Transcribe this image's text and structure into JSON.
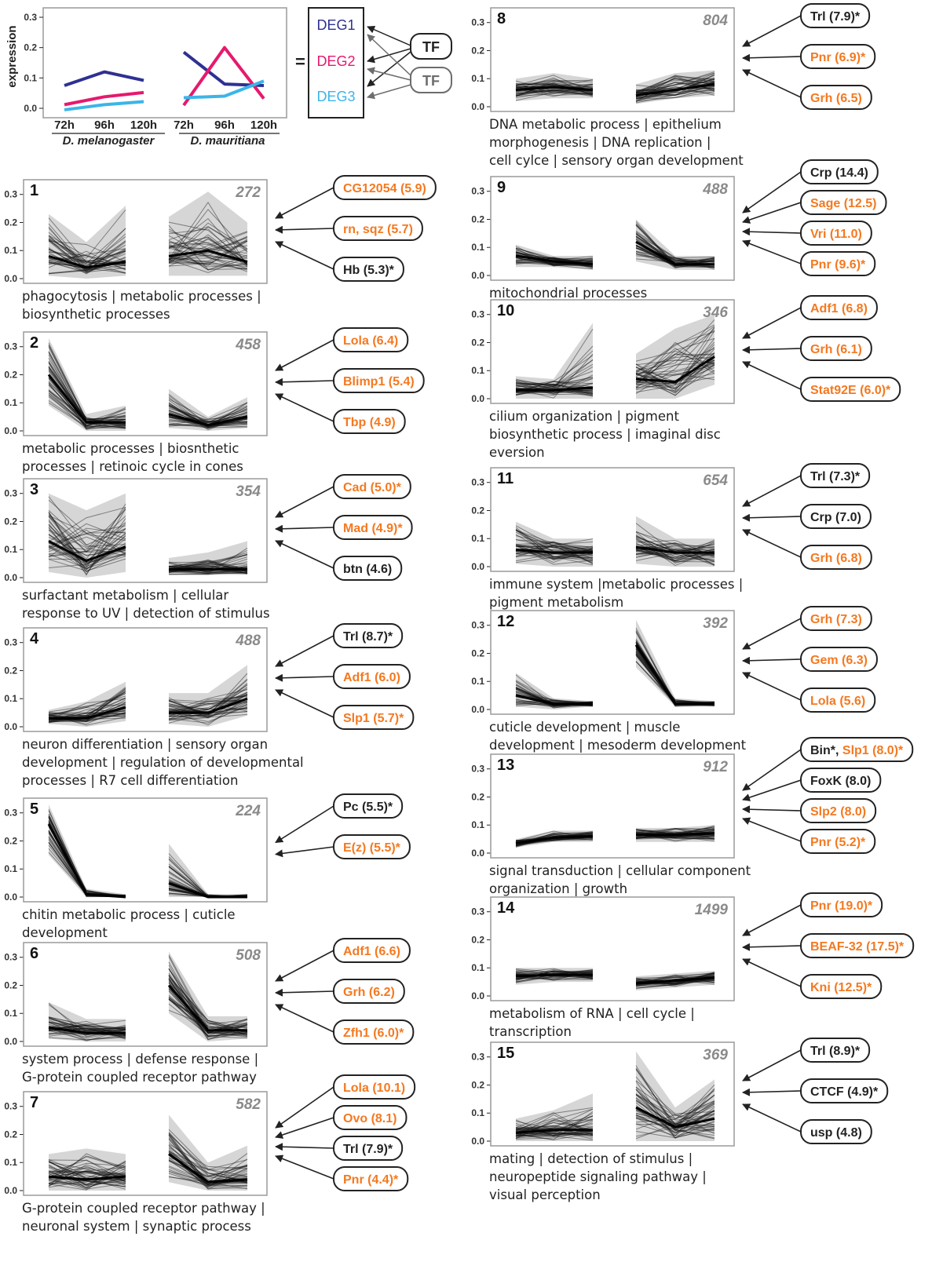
{
  "colors": {
    "orange": "#f47920",
    "black": "#222222",
    "deg1": "#2e3192",
    "deg2": "#e6196e",
    "deg3": "#3bb5e8",
    "tf_gray": "#6d6d6d",
    "panel_border": "#9a9a9a",
    "count_gray": "#8a8a8a"
  },
  "yticks": [
    "0.0",
    "0.1",
    "0.2",
    "0.3"
  ],
  "legend": {
    "ylabel": "expression",
    "xticks": [
      "72h",
      "96h",
      "120h",
      "72h",
      "96h",
      "120h"
    ],
    "species": [
      "D. melanogaster",
      "D. mauritiana"
    ],
    "equals": "=",
    "deg_labels": [
      "DEG1",
      "DEG2",
      "DEG3"
    ],
    "tf_labels": [
      "TF",
      "TF"
    ]
  },
  "chart_data": [
    {
      "type": "line",
      "panel": "legend",
      "x": [
        "72h",
        "96h",
        "120h"
      ],
      "groups": [
        "D. melanogaster",
        "D. mauritiana"
      ],
      "ylabel": "expression",
      "ylim": [
        0,
        0.3
      ],
      "series": [
        {
          "name": "DEG1",
          "color": "#2e3192",
          "values": [
            [
              0.075,
              0.12,
              0.092
            ],
            [
              0.185,
              0.08,
              0.075
            ]
          ]
        },
        {
          "name": "DEG2",
          "color": "#e6196e",
          "values": [
            [
              0.012,
              0.038,
              0.052
            ],
            [
              0.01,
              0.2,
              0.032
            ]
          ]
        },
        {
          "name": "DEG3",
          "color": "#3bb5e8",
          "values": [
            [
              -0.005,
              0.012,
              0.022
            ],
            [
              0.035,
              0.04,
              0.09
            ]
          ]
        }
      ]
    }
  ],
  "panels": [
    {
      "num": "1",
      "count": "272",
      "ylim": [
        0,
        0.33
      ],
      "profiles": {
        "mel": {
          "min": [
            0.01,
            0.0,
            0.01
          ],
          "max": [
            0.23,
            0.13,
            0.26
          ],
          "med": [
            0.08,
            0.04,
            0.06
          ]
        },
        "mau": {
          "min": [
            0.01,
            0.01,
            0.01
          ],
          "max": [
            0.22,
            0.31,
            0.2
          ],
          "med": [
            0.08,
            0.1,
            0.06
          ]
        }
      },
      "description": [
        "phagocytosis | metabolic processes |",
        "biosynthetic processes"
      ],
      "tfs": [
        {
          "label": "CG12054 (5.9)",
          "color": "orange"
        },
        {
          "label": "rn, sqz (5.7)",
          "color": "orange"
        },
        {
          "label": "Hb (5.3)*",
          "color": "black"
        }
      ]
    },
    {
      "num": "2",
      "count": "458",
      "ylim": [
        0,
        0.33
      ],
      "profiles": {
        "mel": {
          "min": [
            0.09,
            0.0,
            0.0
          ],
          "max": [
            0.33,
            0.06,
            0.09
          ],
          "med": [
            0.2,
            0.03,
            0.03
          ]
        },
        "mau": {
          "min": [
            0.01,
            0.0,
            0.01
          ],
          "max": [
            0.15,
            0.05,
            0.12
          ],
          "med": [
            0.06,
            0.02,
            0.05
          ]
        }
      },
      "description": [
        "metabolic processes | biosnthetic",
        "processes | retinoic cycle in cones"
      ],
      "tfs": [
        {
          "label": "Lola (6.4)",
          "color": "orange"
        },
        {
          "label": "Blimp1 (5.4)",
          "color": "orange"
        },
        {
          "label": "Tbp (4.9)",
          "color": "orange"
        }
      ]
    },
    {
      "num": "3",
      "count": "354",
      "ylim": [
        0,
        0.33
      ],
      "profiles": {
        "mel": {
          "min": [
            0.02,
            0.0,
            0.02
          ],
          "max": [
            0.3,
            0.24,
            0.3
          ],
          "med": [
            0.13,
            0.06,
            0.11
          ]
        },
        "mau": {
          "min": [
            0.01,
            0.01,
            0.01
          ],
          "max": [
            0.07,
            0.09,
            0.13
          ],
          "med": [
            0.03,
            0.03,
            0.03
          ]
        }
      },
      "description": [
        "surfactant metabolism | cellular",
        "response to UV | detection of stimulus"
      ],
      "tfs": [
        {
          "label": "Cad (5.0)*",
          "color": "orange"
        },
        {
          "label": "Mad (4.9)*",
          "color": "orange"
        },
        {
          "label": "btn (4.6)",
          "color": "black"
        }
      ]
    },
    {
      "num": "4",
      "count": "488",
      "ylim": [
        0,
        0.33
      ],
      "profiles": {
        "mel": {
          "min": [
            0.01,
            0.0,
            0.02
          ],
          "max": [
            0.06,
            0.09,
            0.16
          ],
          "med": [
            0.03,
            0.03,
            0.07
          ]
        },
        "mau": {
          "min": [
            0.01,
            0.0,
            0.04
          ],
          "max": [
            0.12,
            0.12,
            0.22
          ],
          "med": [
            0.05,
            0.05,
            0.1
          ]
        }
      },
      "description": [
        "neuron differentiation | sensory organ",
        "development | regulation of developmental",
        "processes | R7 cell differentiation"
      ],
      "tfs": [
        {
          "label": "Trl (8.7)*",
          "color": "black"
        },
        {
          "label": "Adf1 (6.0)",
          "color": "orange"
        },
        {
          "label": "Slp1 (5.7)*",
          "color": "orange"
        }
      ]
    },
    {
      "num": "5",
      "count": "224",
      "ylim": [
        0,
        0.33
      ],
      "profiles": {
        "mel": {
          "min": [
            0.15,
            0.0,
            0.0
          ],
          "max": [
            0.33,
            0.03,
            0.01
          ],
          "med": [
            0.26,
            0.01,
            0.0
          ]
        },
        "mau": {
          "min": [
            0.0,
            0.0,
            0.0
          ],
          "max": [
            0.19,
            0.01,
            0.01
          ],
          "med": [
            0.05,
            0.0,
            0.0
          ]
        }
      },
      "description": [
        "chitin metabolic process | cuticle",
        "development"
      ],
      "tfs": [
        {
          "label": "Pc (5.5)*",
          "color": "black"
        },
        {
          "label": "E(z) (5.5)*",
          "color": "orange"
        }
      ]
    },
    {
      "num": "6",
      "count": "508",
      "ylim": [
        0,
        0.33
      ],
      "profiles": {
        "mel": {
          "min": [
            0.01,
            0.0,
            0.0
          ],
          "max": [
            0.14,
            0.08,
            0.08
          ],
          "med": [
            0.05,
            0.03,
            0.03
          ]
        },
        "mau": {
          "min": [
            0.1,
            0.0,
            0.01
          ],
          "max": [
            0.32,
            0.09,
            0.09
          ],
          "med": [
            0.2,
            0.04,
            0.04
          ]
        }
      },
      "description": [
        "system process | defense response |",
        "G-protein coupled receptor pathway"
      ],
      "tfs": [
        {
          "label": "Adf1 (6.6)",
          "color": "orange"
        },
        {
          "label": "Grh (6.2)",
          "color": "orange"
        },
        {
          "label": "Zfh1 (6.0)*",
          "color": "orange"
        }
      ]
    },
    {
      "num": "7",
      "count": "582",
      "ylim": [
        0,
        0.33
      ],
      "profiles": {
        "mel": {
          "min": [
            0.0,
            0.0,
            0.0
          ],
          "max": [
            0.13,
            0.15,
            0.13
          ],
          "med": [
            0.05,
            0.04,
            0.05
          ]
        },
        "mau": {
          "min": [
            0.03,
            0.0,
            0.0
          ],
          "max": [
            0.27,
            0.1,
            0.16
          ],
          "med": [
            0.13,
            0.03,
            0.04
          ]
        }
      },
      "description": [
        "G-protein coupled receptor pathway |",
        "neuronal system | synaptic process"
      ],
      "tfs": [
        {
          "label": "Lola (10.1)",
          "color": "orange"
        },
        {
          "label": "Ovo (8.1)",
          "color": "orange"
        },
        {
          "label": "Trl (7.9)*",
          "color": "black"
        },
        {
          "label": "Pnr (4.4)*",
          "color": "orange"
        }
      ]
    },
    {
      "num": "8",
      "count": "804",
      "ylim": [
        0,
        0.33
      ],
      "profiles": {
        "mel": {
          "min": [
            0.02,
            0.03,
            0.03
          ],
          "max": [
            0.1,
            0.12,
            0.1
          ],
          "med": [
            0.06,
            0.07,
            0.06
          ]
        },
        "mau": {
          "min": [
            0.01,
            0.03,
            0.04
          ],
          "max": [
            0.08,
            0.12,
            0.13
          ],
          "med": [
            0.04,
            0.06,
            0.08
          ]
        }
      },
      "description": [
        "DNA metabolic process | epithelium",
        "morphogenesis | DNA replication |",
        "cell cylce | sensory organ development"
      ],
      "tfs": [
        {
          "label": "Trl (7.9)*",
          "color": "black"
        },
        {
          "label": "Pnr (6.9)*",
          "color": "orange"
        },
        {
          "label": "Grh (6.5)",
          "color": "orange"
        }
      ]
    },
    {
      "num": "9",
      "count": "488",
      "ylim": [
        0,
        0.33
      ],
      "profiles": {
        "mel": {
          "min": [
            0.03,
            0.03,
            0.02
          ],
          "max": [
            0.11,
            0.07,
            0.07
          ],
          "med": [
            0.07,
            0.05,
            0.04
          ]
        },
        "mau": {
          "min": [
            0.05,
            0.02,
            0.02
          ],
          "max": [
            0.2,
            0.07,
            0.07
          ],
          "med": [
            0.12,
            0.04,
            0.04
          ]
        }
      },
      "description": [
        "mitochondrial processes"
      ],
      "tfs": [
        {
          "label": "Crp (14.4)",
          "color": "black"
        },
        {
          "label": "Sage (12.5)",
          "color": "orange"
        },
        {
          "label": "Vri (11.0)",
          "color": "orange"
        },
        {
          "label": "Pnr (9.6)*",
          "color": "orange"
        }
      ]
    },
    {
      "num": "10",
      "count": "346",
      "ylim": [
        0,
        0.33
      ],
      "profiles": {
        "mel": {
          "min": [
            0.0,
            0.0,
            0.0
          ],
          "max": [
            0.08,
            0.07,
            0.27
          ],
          "med": [
            0.03,
            0.03,
            0.04
          ]
        },
        "mau": {
          "min": [
            0.0,
            0.0,
            0.05
          ],
          "max": [
            0.16,
            0.25,
            0.3
          ],
          "med": [
            0.07,
            0.06,
            0.15
          ]
        }
      },
      "description": [
        "cilium organization | pigment",
        "biosynthetic process | imaginal disc",
        "eversion"
      ],
      "tfs": [
        {
          "label": "Adf1 (6.8)",
          "color": "orange"
        },
        {
          "label": "Grh (6.1)",
          "color": "orange"
        },
        {
          "label": "Stat92E (6.0)*",
          "color": "orange"
        }
      ]
    },
    {
      "num": "11",
      "count": "654",
      "ylim": [
        0,
        0.33
      ],
      "profiles": {
        "mel": {
          "min": [
            0.01,
            0.0,
            0.0
          ],
          "max": [
            0.16,
            0.1,
            0.1
          ],
          "med": [
            0.06,
            0.05,
            0.05
          ]
        },
        "mau": {
          "min": [
            0.01,
            0.0,
            0.0
          ],
          "max": [
            0.18,
            0.1,
            0.1
          ],
          "med": [
            0.07,
            0.05,
            0.05
          ]
        }
      },
      "description": [
        "immune system |metabolic processes |",
        "pigment metabolism"
      ],
      "tfs": [
        {
          "label": "Trl (7.3)*",
          "color": "black"
        },
        {
          "label": "Crp (7.0)",
          "color": "black"
        },
        {
          "label": "Grh (6.8)",
          "color": "orange"
        }
      ]
    },
    {
      "num": "12",
      "count": "392",
      "ylim": [
        0,
        0.33
      ],
      "profiles": {
        "mel": {
          "min": [
            0.01,
            0.0,
            0.01
          ],
          "max": [
            0.13,
            0.04,
            0.03
          ],
          "med": [
            0.05,
            0.02,
            0.02
          ]
        },
        "mau": {
          "min": [
            0.15,
            0.01,
            0.01
          ],
          "max": [
            0.32,
            0.04,
            0.03
          ],
          "med": [
            0.23,
            0.02,
            0.02
          ]
        }
      },
      "description": [
        "cuticle development | muscle",
        "development | mesoderm development"
      ],
      "tfs": [
        {
          "label": "Grh (7.3)",
          "color": "orange"
        },
        {
          "label": "Gem (6.3)",
          "color": "orange"
        },
        {
          "label": "Lola (5.6)",
          "color": "orange"
        }
      ]
    },
    {
      "num": "13",
      "count": "912",
      "ylim": [
        0,
        0.33
      ],
      "profiles": {
        "mel": {
          "min": [
            0.02,
            0.04,
            0.04
          ],
          "max": [
            0.05,
            0.08,
            0.08
          ],
          "med": [
            0.035,
            0.055,
            0.06
          ]
        },
        "mau": {
          "min": [
            0.04,
            0.04,
            0.04
          ],
          "max": [
            0.09,
            0.09,
            0.1
          ],
          "med": [
            0.065,
            0.065,
            0.07
          ]
        }
      },
      "description": [
        "signal transduction | cellular component",
        "organization | growth"
      ],
      "tfs": [
        {
          "label": "Bin*, ",
          "label2": "Slp1 (8.0)*",
          "color": "black",
          "color2": "orange"
        },
        {
          "label": "FoxK (8.0)",
          "color": "black"
        },
        {
          "label": "Slp2 (8.0)",
          "color": "orange"
        },
        {
          "label": "Pnr (5.2)*",
          "color": "orange"
        }
      ]
    },
    {
      "num": "14",
      "count": "1499",
      "ylim": [
        0,
        0.33
      ],
      "profiles": {
        "mel": {
          "min": [
            0.04,
            0.05,
            0.05
          ],
          "max": [
            0.1,
            0.1,
            0.1
          ],
          "med": [
            0.07,
            0.075,
            0.075
          ]
        },
        "mau": {
          "min": [
            0.02,
            0.03,
            0.04
          ],
          "max": [
            0.07,
            0.08,
            0.09
          ],
          "med": [
            0.045,
            0.055,
            0.065
          ]
        }
      },
      "description": [
        "metabolism of RNA | cell cycle |",
        "transcription"
      ],
      "tfs": [
        {
          "label": "Pnr (19.0)*",
          "color": "orange"
        },
        {
          "label": "BEAF-32 (17.5)*",
          "color": "orange"
        },
        {
          "label": "Kni (12.5)*",
          "color": "orange"
        }
      ]
    },
    {
      "num": "15",
      "count": "369",
      "ylim": [
        0,
        0.33
      ],
      "profiles": {
        "mel": {
          "min": [
            0.0,
            0.0,
            0.0
          ],
          "max": [
            0.08,
            0.11,
            0.17
          ],
          "med": [
            0.03,
            0.04,
            0.04
          ]
        },
        "mau": {
          "min": [
            0.0,
            0.0,
            0.0
          ],
          "max": [
            0.32,
            0.12,
            0.22
          ],
          "med": [
            0.12,
            0.05,
            0.08
          ]
        }
      },
      "description": [
        "mating | detection of stimulus |",
        "neuropeptide signaling pathway |",
        "visual perception"
      ],
      "tfs": [
        {
          "label": "Trl (8.9)*",
          "color": "black"
        },
        {
          "label": "CTCF (4.9)*",
          "color": "black"
        },
        {
          "label": "usp (4.8)",
          "color": "black"
        }
      ]
    }
  ]
}
